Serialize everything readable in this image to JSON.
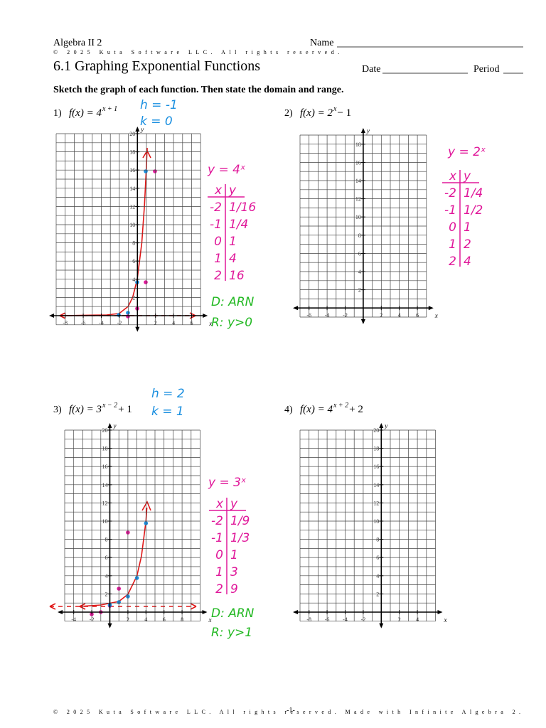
{
  "header": {
    "course": "Algebra II 2",
    "name_label": "Name",
    "copyright": "© 2025 Kuta Software LLC. All rights reserved.",
    "title": "6.1 Graphing Exponential Functions",
    "date_label": "Date",
    "period_label": "Period",
    "instructions": "Sketch the graph of each function. Then state the domain and range."
  },
  "problems": [
    {
      "number": "1)",
      "function": "f(x) = 4",
      "exponent": "x + 1",
      "grid": {
        "xticks": [
          -8,
          -6,
          -4,
          -2,
          2,
          4,
          6
        ],
        "yticks": [
          2,
          4,
          6,
          8,
          10,
          12,
          14,
          16,
          18,
          20
        ],
        "x_label": "x",
        "y_label": "y"
      },
      "work": {
        "shift_notes": [
          "h = -1",
          "k = 0"
        ],
        "parent": "y = 4ˣ",
        "table": {
          "header": [
            "x",
            "y"
          ],
          "rows": [
            [
              "-2",
              "1/16"
            ],
            [
              "-1",
              "1/4"
            ],
            [
              "0",
              "1"
            ],
            [
              "1",
              "4"
            ],
            [
              "2",
              "16"
            ]
          ]
        },
        "domain": "D: ARN",
        "range": "R: y>0"
      }
    },
    {
      "number": "2)",
      "function": "f(x) = 2",
      "exponent": "x",
      "tail": " − 1",
      "grid": {
        "xticks": [
          -6,
          -4,
          -2,
          2,
          4,
          6
        ],
        "yticks": [
          2,
          4,
          6,
          8,
          10,
          12,
          14,
          16,
          18
        ],
        "x_label": "x",
        "y_label": "y"
      },
      "work": {
        "parent": "y = 2ˣ",
        "table": {
          "header": [
            "x",
            "y"
          ],
          "rows": [
            [
              "-2",
              "1/4"
            ],
            [
              "-1",
              "1/2"
            ],
            [
              "0",
              "1"
            ],
            [
              "1",
              "2"
            ],
            [
              "2",
              "4"
            ]
          ]
        }
      }
    },
    {
      "number": "3)",
      "function": "f(x) = 3",
      "exponent": "x − 2",
      "tail": " + 1",
      "grid": {
        "xticks": [
          -4,
          -2,
          2,
          4,
          6,
          8
        ],
        "yticks": [
          2,
          4,
          6,
          8,
          10,
          12,
          14,
          16,
          18,
          20
        ],
        "x_label": "x",
        "y_label": "y"
      },
      "work": {
        "shift_notes": [
          "h = 2",
          "k = 1"
        ],
        "parent": "y = 3ˣ",
        "table": {
          "header": [
            "x",
            "y"
          ],
          "rows": [
            [
              "-2",
              "1/9"
            ],
            [
              "-1",
              "1/3"
            ],
            [
              "0",
              "1"
            ],
            [
              "1",
              "3"
            ],
            [
              "2",
              "9"
            ]
          ]
        },
        "domain": "D: ARN",
        "range": "R: y>1"
      }
    },
    {
      "number": "4)",
      "function": "f(x) = 4",
      "exponent": "x + 2",
      "tail": " + 2",
      "grid": {
        "xticks": [
          -8,
          -6,
          -4,
          -2,
          2,
          4
        ],
        "yticks": [
          2,
          4,
          6,
          8,
          10,
          12,
          14,
          16,
          18,
          20
        ],
        "x_label": "x",
        "y_label": "y"
      }
    }
  ],
  "footer": {
    "copyright": "© 2025 Kuta Software LLC. All rights reserved. Made with Infinite Algebra 2.",
    "page": "-1-"
  }
}
